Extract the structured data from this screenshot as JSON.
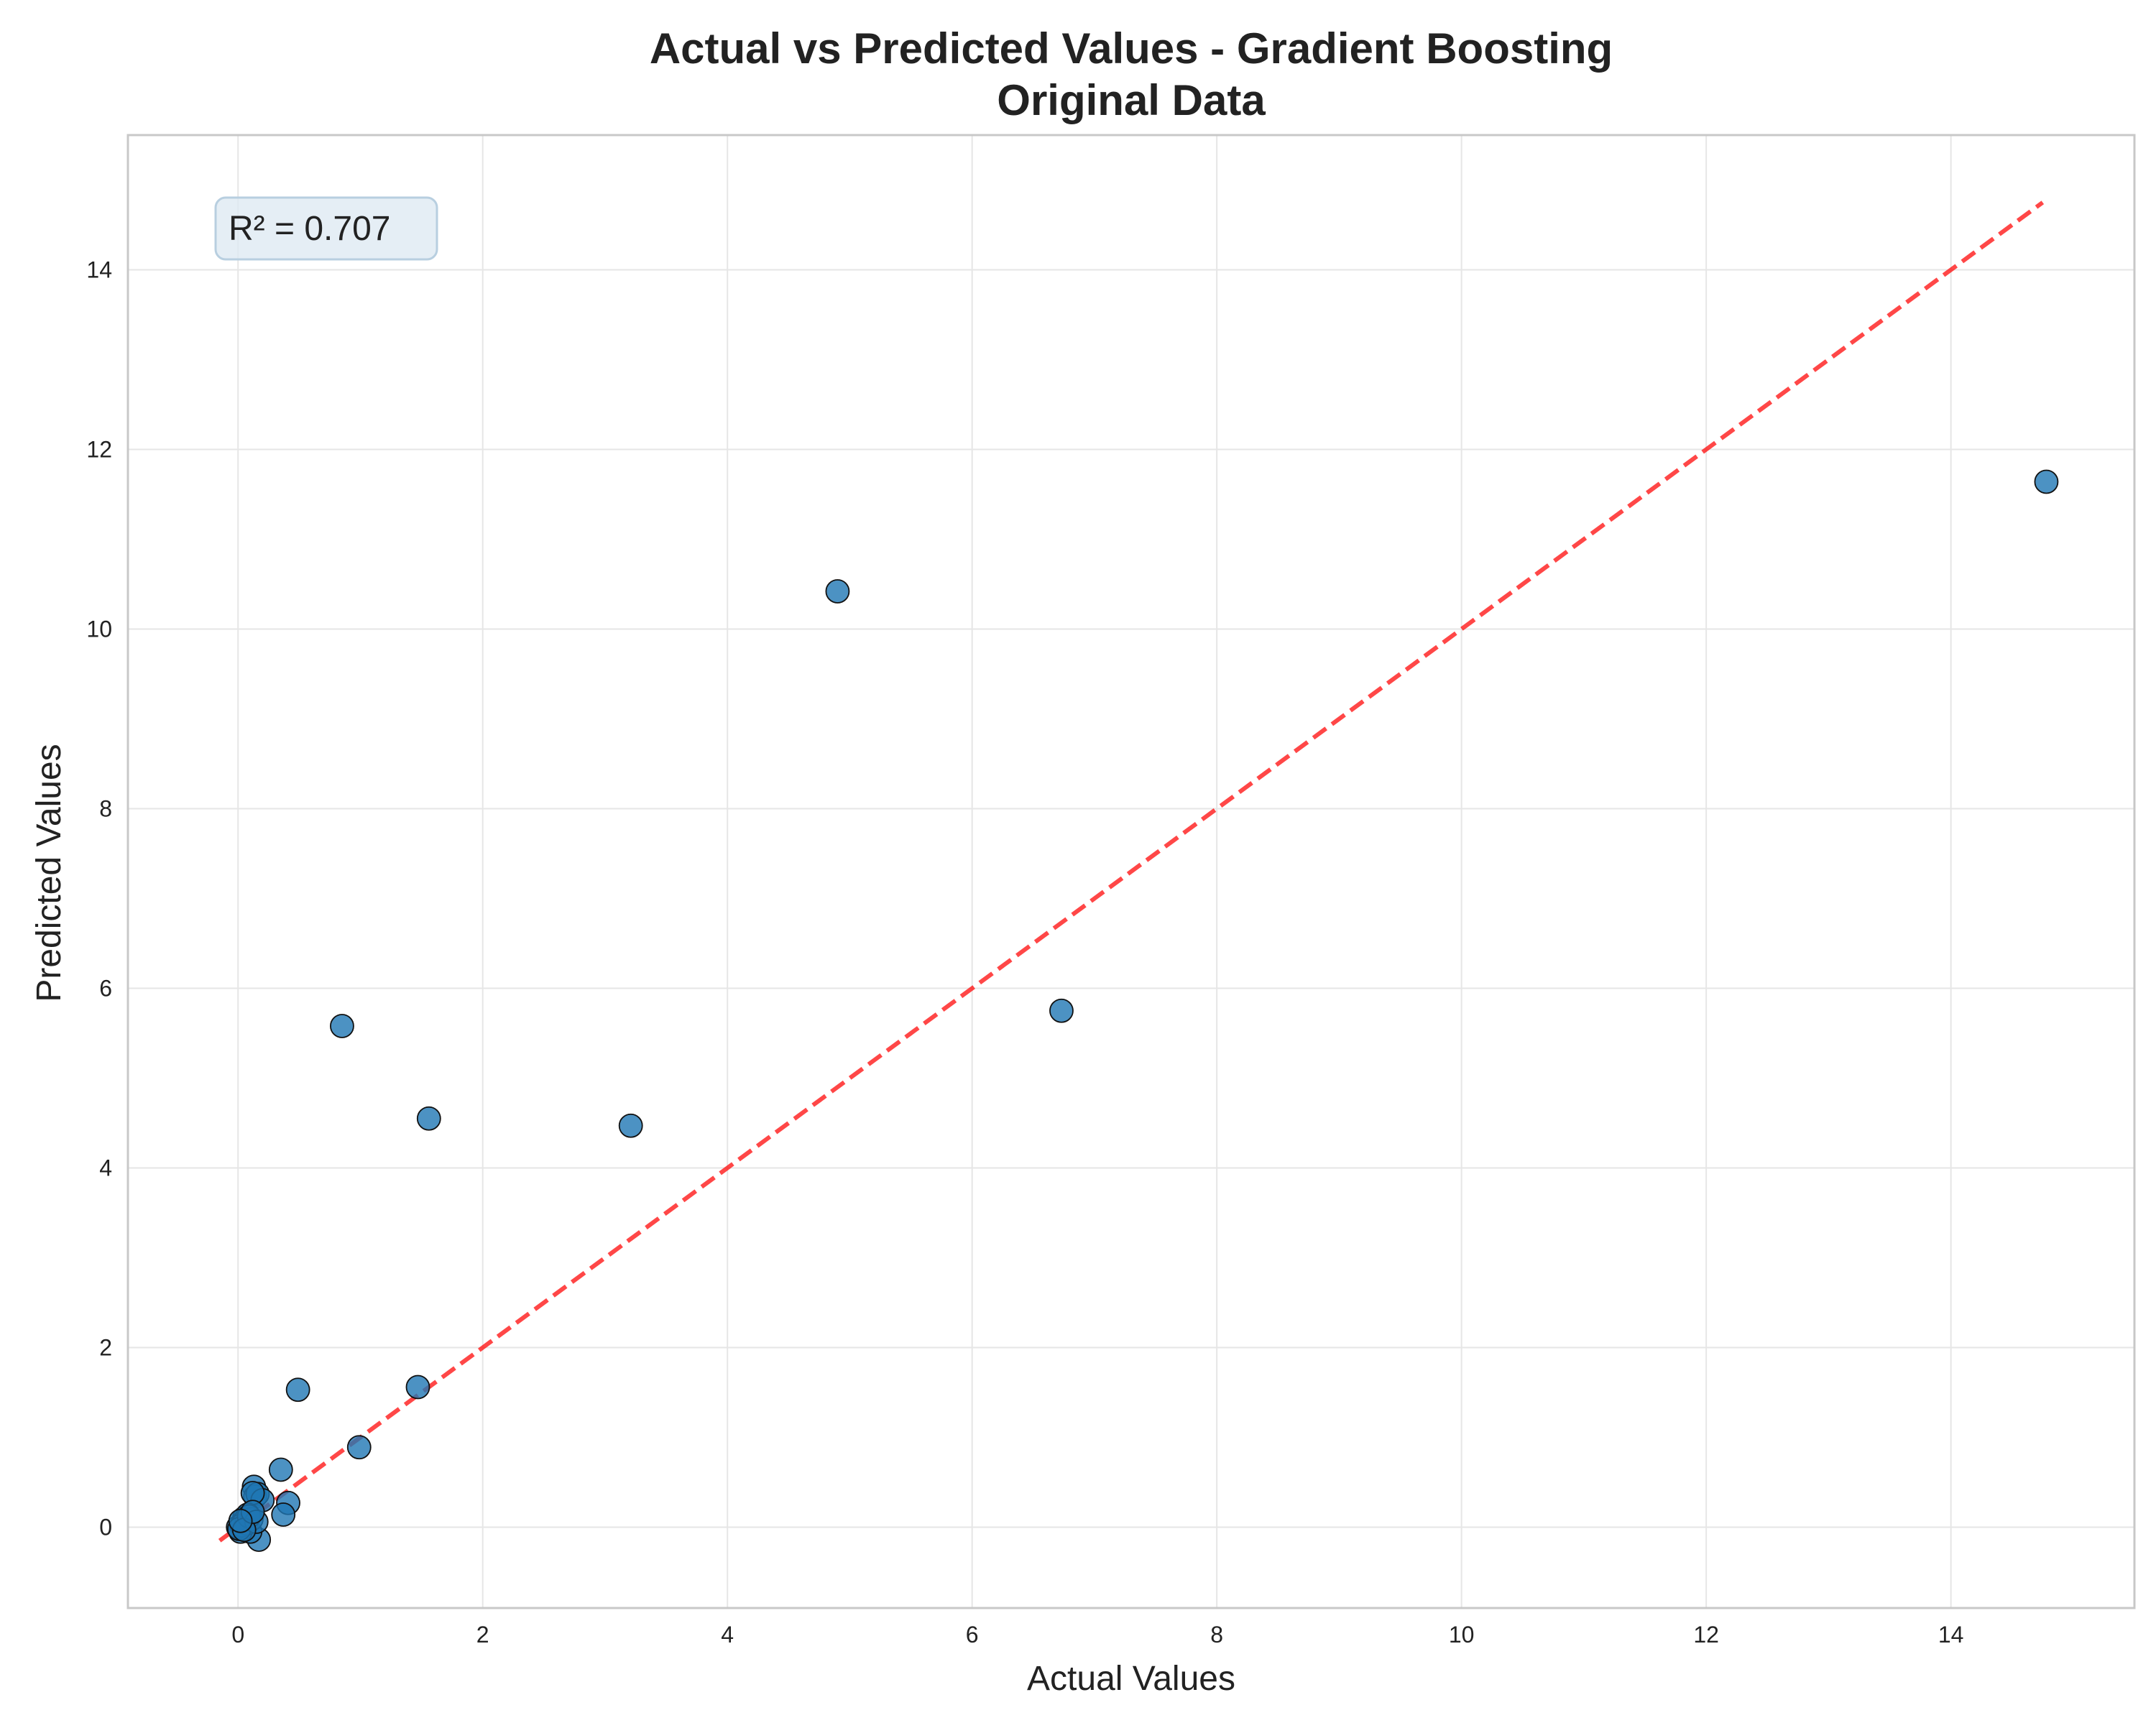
{
  "chart_data": {
    "type": "scatter",
    "title": "Actual vs Predicted Values - Gradient Boosting",
    "subtitle": "Original Data",
    "xlabel": "Actual Values",
    "ylabel": "Predicted Values",
    "xlim": [
      -0.9,
      15.5
    ],
    "ylim": [
      -0.9,
      15.5
    ],
    "x_ticks": [
      0,
      2,
      4,
      6,
      8,
      10,
      12,
      14
    ],
    "y_ticks": [
      0,
      2,
      4,
      6,
      8,
      10,
      12,
      14
    ],
    "x_tick_labels": [
      "0",
      "2",
      "4",
      "6",
      "8",
      "10",
      "12",
      "14"
    ],
    "y_tick_labels": [
      "0",
      "2",
      "4",
      "6",
      "8",
      "10",
      "12",
      "14"
    ],
    "grid": true,
    "annotation": {
      "text": "R² = 0.707",
      "position": "top-left"
    },
    "reference_line": {
      "type": "identity",
      "from": [
        -0.15,
        -0.15
      ],
      "to": [
        14.75,
        14.75
      ],
      "color": "#ff0000",
      "style": "dashed"
    },
    "point_color": "#1f77b4",
    "points": [
      {
        "x": 14.78,
        "y": 11.64
      },
      {
        "x": 4.9,
        "y": 10.42
      },
      {
        "x": 6.73,
        "y": 5.75
      },
      {
        "x": 0.85,
        "y": 5.58
      },
      {
        "x": 1.56,
        "y": 4.55
      },
      {
        "x": 3.21,
        "y": 4.47
      },
      {
        "x": 0.49,
        "y": 1.53
      },
      {
        "x": 1.47,
        "y": 1.56
      },
      {
        "x": 0.99,
        "y": 0.89
      },
      {
        "x": 0.35,
        "y": 0.64
      },
      {
        "x": 0.41,
        "y": 0.27
      },
      {
        "x": 0.37,
        "y": 0.14
      },
      {
        "x": 0.13,
        "y": 0.45
      },
      {
        "x": 0.14,
        "y": 0.34
      },
      {
        "x": 0.16,
        "y": 0.37
      },
      {
        "x": 0.2,
        "y": 0.3
      },
      {
        "x": 0.12,
        "y": 0.38
      },
      {
        "x": 0.17,
        "y": -0.14
      },
      {
        "x": 0.1,
        "y": -0.05
      },
      {
        "x": 0.05,
        "y": 0.1
      },
      {
        "x": 0.02,
        "y": -0.05
      },
      {
        "x": 0.0,
        "y": 0.0
      },
      {
        "x": 0.04,
        "y": 0.05
      },
      {
        "x": 0.08,
        "y": 0.14
      },
      {
        "x": 0.06,
        "y": 0.08
      },
      {
        "x": 0.03,
        "y": 0.02
      },
      {
        "x": 0.07,
        "y": 0.04
      },
      {
        "x": 0.11,
        "y": 0.09
      },
      {
        "x": 0.01,
        "y": -0.02
      },
      {
        "x": 0.09,
        "y": 0.12
      },
      {
        "x": 0.15,
        "y": 0.06
      },
      {
        "x": 0.05,
        "y": -0.03
      },
      {
        "x": 0.12,
        "y": 0.17
      },
      {
        "x": 0.02,
        "y": 0.07
      }
    ]
  }
}
